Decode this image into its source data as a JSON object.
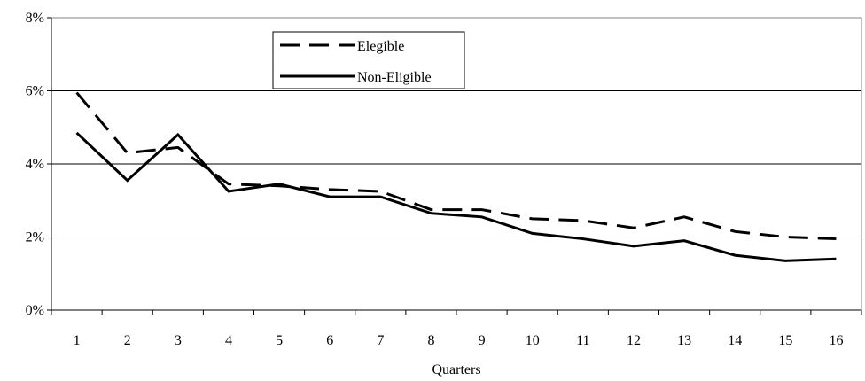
{
  "chart_data": {
    "type": "line",
    "title": "",
    "xlabel": "Quarters",
    "ylabel": "",
    "x": [
      1,
      2,
      3,
      4,
      5,
      6,
      7,
      8,
      9,
      10,
      11,
      12,
      13,
      14,
      15,
      16
    ],
    "ylim": [
      0,
      8
    ],
    "yticks": [
      0,
      2,
      4,
      6,
      8
    ],
    "ytick_labels": [
      "0%",
      "2%",
      "4%",
      "6%",
      "8%"
    ],
    "grid": "horizontal",
    "legend_position": "top-center",
    "series": [
      {
        "name": "Elegible",
        "style": "dashed",
        "color": "#000000",
        "values": [
          5.95,
          4.3,
          4.45,
          3.45,
          3.4,
          3.3,
          3.25,
          2.75,
          2.75,
          2.5,
          2.45,
          2.25,
          2.55,
          2.15,
          2.0,
          1.95
        ]
      },
      {
        "name": "Non-Eligible",
        "style": "solid",
        "color": "#000000",
        "values": [
          4.85,
          3.55,
          4.8,
          3.25,
          3.45,
          3.1,
          3.1,
          2.65,
          2.55,
          2.1,
          1.95,
          1.75,
          1.9,
          1.5,
          1.35,
          1.4
        ]
      }
    ]
  }
}
